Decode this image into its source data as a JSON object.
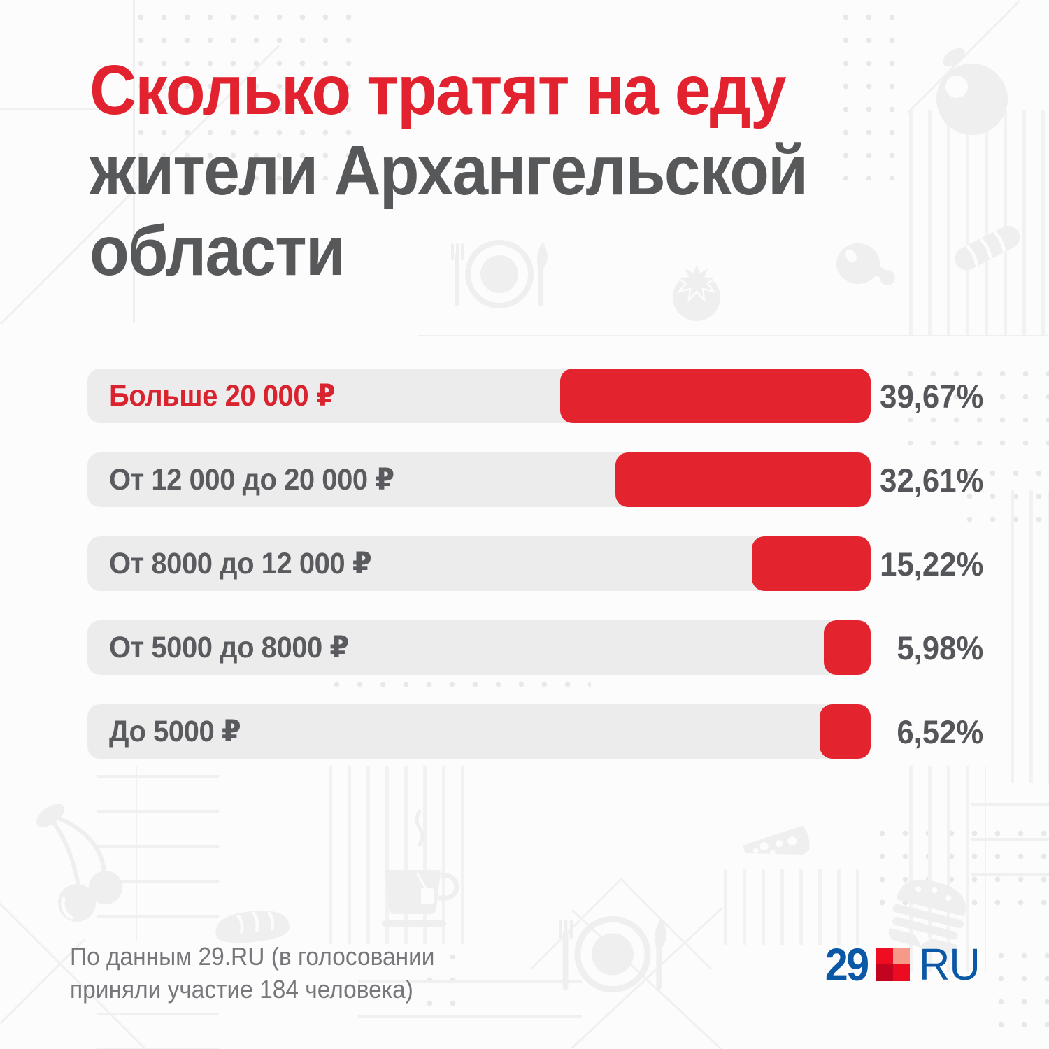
{
  "title": {
    "line1": "Сколько тратят на еду",
    "line2": "жители Архангельской",
    "line3": "области"
  },
  "chart_data": {
    "type": "bar",
    "orientation": "horizontal",
    "title": "Сколько тратят на еду жители Архангельской области",
    "categories": [
      "Больше 20 000 ₽",
      "От 12 000 до 20 000 ₽",
      "От 8000 до 12 000 ₽",
      "От 5000 до 8000 ₽",
      "До 5000 ₽"
    ],
    "values": [
      39.67,
      32.61,
      15.22,
      5.98,
      6.52
    ],
    "value_labels": [
      "39,67%",
      "32,61%",
      "15,22%",
      "5,98%",
      "6,52%"
    ],
    "unit": "%",
    "xlim": [
      0,
      100
    ],
    "bars_right_aligned": true,
    "highlight_index": 0,
    "bar_color": "#e3242f",
    "track_color": "#ececec",
    "grid": false,
    "legend": false
  },
  "footer": {
    "source_line1": "По данным 29.RU (в голосовании",
    "source_line2": "приняли участие 184 человека)"
  },
  "logo": {
    "left_text": "29",
    "right_text": "RU",
    "blue": "#0a58a6",
    "square_colors": [
      "#ef0e21",
      "#f59a89",
      "#c20421",
      "#ec0c22"
    ]
  },
  "colors": {
    "accent_red": "#e3242f",
    "highlight_label_red": "#d9232e",
    "title_gray": "#57585a",
    "category_label_gray": "#5a5b5e",
    "value_text_gray": "#55565a",
    "footer_text_gray": "#76777a",
    "background": "#fcfcfc",
    "pattern_gray": "#f0f0f0",
    "icon_gray": "#efefef"
  },
  "decor": {
    "icons": [
      "fork-plate-knife",
      "tomato",
      "ham-leg",
      "baguette",
      "apple",
      "cherries",
      "bread-loaf",
      "tea-cup",
      "fork-plate-knife",
      "cheese-wedge",
      "burger"
    ]
  }
}
